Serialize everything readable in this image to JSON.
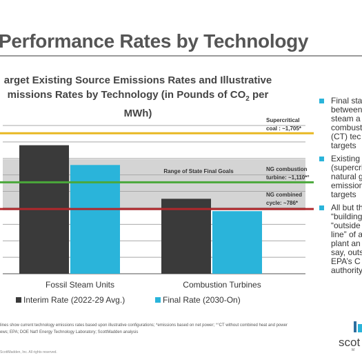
{
  "page": {
    "title": "Performance Rates by Technology"
  },
  "chart_data": {
    "type": "bar",
    "title_line1": "arget Existing Source Emissions Rates and Illustrative",
    "title_line2_pre": "missions Rates by Technology (in Pounds of CO",
    "title_sub": "2",
    "title_line2_post": " per",
    "title_line3": "MWh)",
    "categories": [
      "Fossil Steam Units",
      "Combustion Turbines"
    ],
    "series": [
      {
        "name": "Interim Rate (2022-29 Avg.)",
        "color": "#3a3a3a",
        "values": [
          1560,
          910
        ]
      },
      {
        "name": "Final Rate (2030-On)",
        "color": "#2ab4da",
        "values": [
          1320,
          760
        ]
      }
    ],
    "ylim": [
      0,
      1900
    ],
    "grid": true,
    "legend_position": "bottom",
    "band": {
      "label": "Range of State Final Goals",
      "range": [
        770,
        1390
      ],
      "color": "#d4d4d4"
    },
    "reference_lines": [
      {
        "line1": "Supercritical",
        "line2": "coal : ~1,705*",
        "value": 1705,
        "color": "#e8b822"
      },
      {
        "line1": "NG combustion",
        "line2": "turbine: ~1,110*°",
        "value": 1110,
        "color": "#4aa83a"
      },
      {
        "line1": "NG combined",
        "line2": "cycle: ~786*",
        "value": 786,
        "color": "#b0282c"
      }
    ]
  },
  "bullets": [
    "Final sta between steam a combust (CT) tec targets",
    "Existing (supercri natural g emission targets",
    "All but th “building “outside line” of a plant an say, outs EPA’s C authority"
  ],
  "footnote": {
    "line1": "lines show current technology emissions rates based upon illustrative configurations; *emissions based on net power; °°CT without combined heat and power",
    "line2": "ews; EPA; DOE Nat'l Energy Technology Laboratory; ScottMadden analysis"
  },
  "copyright": "ScottMadden, Inc. All rights reserved.",
  "logo": {
    "text": "scot",
    "sub": "M"
  }
}
